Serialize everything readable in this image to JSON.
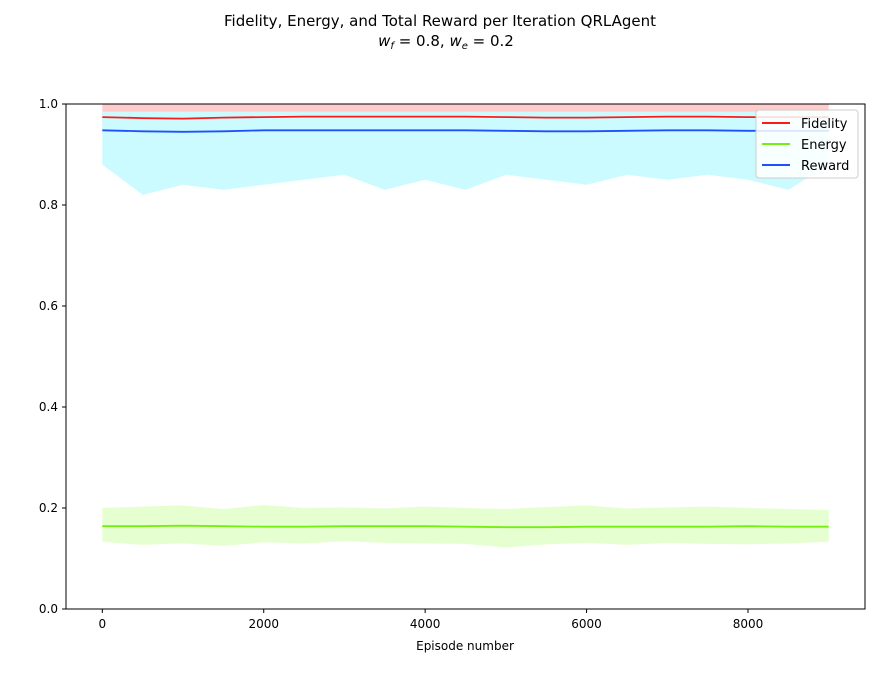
{
  "chart_data": {
    "type": "line",
    "title": "Fidelity, Energy, and Total Reward per Iteration QRLAgent",
    "subtitle": "w_f = 0.8, w_e = 0.2",
    "subtitle_parts": {
      "wf_value": "0.8",
      "we_value": "0.2"
    },
    "xlabel": "Episode number",
    "ylabel": "",
    "xlim": [
      -450,
      9450
    ],
    "ylim": [
      0.0,
      1.0
    ],
    "x_ticks": [
      0,
      2000,
      4000,
      6000,
      8000
    ],
    "y_ticks": [
      0.0,
      0.2,
      0.4,
      0.6,
      0.8,
      1.0
    ],
    "x_tick_labels": [
      "0",
      "2000",
      "4000",
      "6000",
      "8000"
    ],
    "y_tick_labels": [
      "0.0",
      "0.2",
      "0.4",
      "0.6",
      "0.8",
      "1.0"
    ],
    "grid": false,
    "legend_position": "top-right",
    "x": [
      0,
      500,
      1000,
      1500,
      2000,
      2500,
      3000,
      3500,
      4000,
      4500,
      5000,
      5500,
      6000,
      6500,
      7000,
      7500,
      8000,
      8500,
      9000
    ],
    "series": [
      {
        "name": "Fidelity",
        "color": "#ff1a1a",
        "band_color": "#ffcccc",
        "values": [
          0.974,
          0.972,
          0.971,
          0.973,
          0.974,
          0.975,
          0.975,
          0.975,
          0.975,
          0.975,
          0.974,
          0.973,
          0.973,
          0.974,
          0.975,
          0.975,
          0.974,
          0.974,
          0.974
        ],
        "band_low": [
          0.96,
          0.958,
          0.957,
          0.959,
          0.96,
          0.961,
          0.961,
          0.961,
          0.961,
          0.961,
          0.96,
          0.959,
          0.959,
          0.96,
          0.961,
          0.961,
          0.96,
          0.96,
          0.96
        ],
        "band_high": [
          1.0,
          1.0,
          1.0,
          1.0,
          1.0,
          1.0,
          1.0,
          1.0,
          1.0,
          1.0,
          1.0,
          1.0,
          1.0,
          1.0,
          1.0,
          1.0,
          1.0,
          1.0,
          1.0
        ]
      },
      {
        "name": "Energy",
        "color": "#77ee11",
        "band_color": "#e6ffd0",
        "values": [
          0.164,
          0.164,
          0.165,
          0.164,
          0.163,
          0.163,
          0.164,
          0.164,
          0.164,
          0.163,
          0.162,
          0.162,
          0.163,
          0.163,
          0.163,
          0.163,
          0.164,
          0.163,
          0.163
        ],
        "band_low": [
          0.133,
          0.127,
          0.13,
          0.125,
          0.132,
          0.13,
          0.134,
          0.131,
          0.13,
          0.129,
          0.122,
          0.128,
          0.131,
          0.127,
          0.131,
          0.129,
          0.128,
          0.13,
          0.133
        ],
        "band_high": [
          0.2,
          0.203,
          0.205,
          0.198,
          0.206,
          0.2,
          0.201,
          0.199,
          0.203,
          0.2,
          0.198,
          0.202,
          0.205,
          0.199,
          0.201,
          0.203,
          0.2,
          0.198,
          0.196
        ]
      },
      {
        "name": "Reward",
        "color": "#1f4fff",
        "band_color": "#ccfbff",
        "values": [
          0.948,
          0.946,
          0.945,
          0.946,
          0.948,
          0.948,
          0.948,
          0.948,
          0.948,
          0.948,
          0.947,
          0.946,
          0.946,
          0.947,
          0.948,
          0.948,
          0.947,
          0.947,
          0.947
        ],
        "band_low": [
          0.88,
          0.82,
          0.84,
          0.83,
          0.84,
          0.85,
          0.86,
          0.83,
          0.85,
          0.83,
          0.86,
          0.85,
          0.84,
          0.86,
          0.85,
          0.86,
          0.85,
          0.83,
          0.88
        ],
        "band_high": [
          0.985,
          0.985,
          0.985,
          0.985,
          0.985,
          0.985,
          0.985,
          0.985,
          0.985,
          0.985,
          0.985,
          0.985,
          0.985,
          0.985,
          0.985,
          0.985,
          0.985,
          0.985,
          0.985
        ]
      }
    ]
  }
}
